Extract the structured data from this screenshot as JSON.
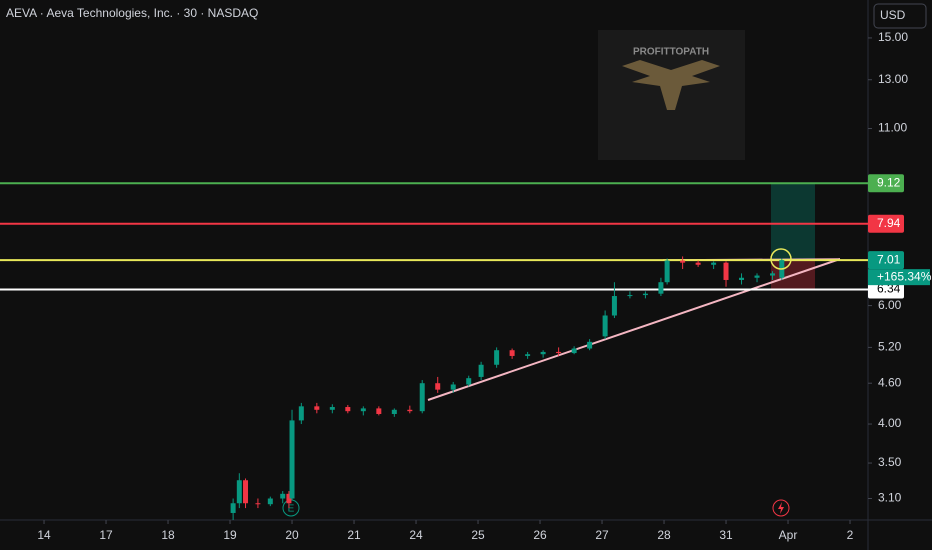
{
  "header": {
    "symbol": "AEVA · Aeva Technologies, Inc. · 30 · NASDAQ",
    "currency": "USD"
  },
  "watermark": "PROFITTOPATH",
  "event_marker": "E",
  "chart_data": {
    "type": "candlestick",
    "log_scale": true,
    "up_color": "#089981",
    "down_color": "#f23645",
    "x": [
      3.05,
      3.15,
      3.25,
      3.45,
      3.65,
      3.85,
      3.95,
      4.0,
      4.15,
      4.4,
      4.65,
      4.9,
      5.15,
      5.4,
      5.65,
      5.9,
      6.1,
      6.35,
      6.6,
      6.85,
      7.05,
      7.3,
      7.55,
      7.8,
      8.05,
      8.3,
      8.55,
      8.8,
      9.05,
      9.2,
      9.45,
      9.7,
      9.95,
      10.05,
      10.3,
      10.55,
      10.8,
      11.0,
      11.25,
      11.5,
      11.75,
      11.9
    ],
    "open": [
      2.95,
      3.05,
      3.3,
      3.05,
      3.04,
      3.1,
      3.15,
      3.1,
      4.05,
      4.25,
      4.2,
      4.24,
      4.18,
      4.22,
      4.14,
      4.2,
      4.18,
      4.6,
      4.5,
      4.58,
      4.7,
      4.9,
      5.15,
      5.05,
      5.08,
      5.12,
      5.1,
      5.18,
      5.4,
      5.8,
      6.2,
      6.22,
      6.25,
      6.5,
      7.0,
      6.95,
      6.9,
      6.95,
      6.55,
      6.6,
      6.65,
      6.6
    ],
    "high": [
      3.1,
      3.38,
      3.32,
      3.1,
      3.12,
      3.18,
      3.18,
      4.2,
      4.3,
      4.3,
      4.28,
      4.27,
      4.25,
      4.25,
      4.22,
      4.26,
      4.65,
      4.7,
      4.62,
      4.72,
      4.95,
      5.2,
      5.18,
      5.12,
      5.15,
      5.2,
      5.22,
      5.35,
      5.9,
      6.5,
      6.3,
      6.3,
      6.6,
      7.05,
      7.1,
      7.0,
      6.98,
      6.98,
      6.7,
      6.7,
      6.75,
      7.05
    ],
    "low": [
      2.88,
      3.0,
      3.0,
      3.0,
      3.02,
      3.05,
      3.0,
      3.08,
      4.0,
      4.15,
      4.15,
      4.15,
      4.12,
      4.12,
      4.1,
      4.15,
      4.15,
      4.45,
      4.45,
      4.55,
      4.65,
      4.85,
      5.0,
      5.0,
      5.02,
      5.05,
      5.08,
      5.15,
      5.35,
      5.75,
      6.15,
      6.15,
      6.2,
      6.45,
      6.8,
      6.85,
      6.8,
      6.4,
      6.45,
      6.5,
      6.55,
      6.55
    ],
    "close": [
      3.05,
      3.3,
      3.05,
      3.04,
      3.1,
      3.15,
      3.05,
      4.05,
      4.25,
      4.2,
      4.24,
      4.18,
      4.22,
      4.14,
      4.2,
      4.18,
      4.6,
      4.5,
      4.58,
      4.68,
      4.9,
      5.15,
      5.05,
      5.08,
      5.12,
      5.1,
      5.18,
      5.3,
      5.8,
      6.2,
      6.22,
      6.25,
      6.5,
      7.0,
      6.95,
      6.9,
      6.95,
      6.55,
      6.6,
      6.65,
      6.7,
      7.01
    ],
    "levels": [
      {
        "value": 9.12,
        "color": "#4caf50",
        "label_color": "#4caf50"
      },
      {
        "value": 7.94,
        "color": "#f23645",
        "label_color": "#f23645"
      },
      {
        "value": 7.01,
        "color": "#e8e85a",
        "label_color": "#089981"
      },
      {
        "value": 6.34,
        "color": "#ffffff",
        "label_color": "#ffffff"
      }
    ],
    "change_label": "+165.34%",
    "xlim": [
      -0.71,
      13.29
    ],
    "xticks": [
      {
        "value": 0,
        "label": "14"
      },
      {
        "value": 1,
        "label": "17"
      },
      {
        "value": 2,
        "label": "18"
      },
      {
        "value": 3,
        "label": "19"
      },
      {
        "value": 4,
        "label": "20"
      },
      {
        "value": 5,
        "label": "21"
      },
      {
        "value": 6,
        "label": "24"
      },
      {
        "value": 7,
        "label": "25"
      },
      {
        "value": 8,
        "label": "26"
      },
      {
        "value": 9,
        "label": "27"
      },
      {
        "value": 10,
        "label": "28"
      },
      {
        "value": 11,
        "label": "31"
      },
      {
        "value": 12,
        "label": "Apr"
      },
      {
        "value": 13,
        "label": "2"
      }
    ],
    "ylim": [
      2.88,
      17.08
    ],
    "yticks": [
      {
        "value": 3.1,
        "label": "3.10"
      },
      {
        "value": 3.5,
        "label": "3.50"
      },
      {
        "value": 4,
        "label": "4.00"
      },
      {
        "value": 4.6,
        "label": "4.60"
      },
      {
        "value": 5.2,
        "label": "5.20"
      },
      {
        "value": 6,
        "label": "6.00"
      },
      {
        "value": 11,
        "label": "11.00"
      },
      {
        "value": 13,
        "label": "13.00"
      },
      {
        "value": 15,
        "label": "15.00"
      }
    ]
  }
}
